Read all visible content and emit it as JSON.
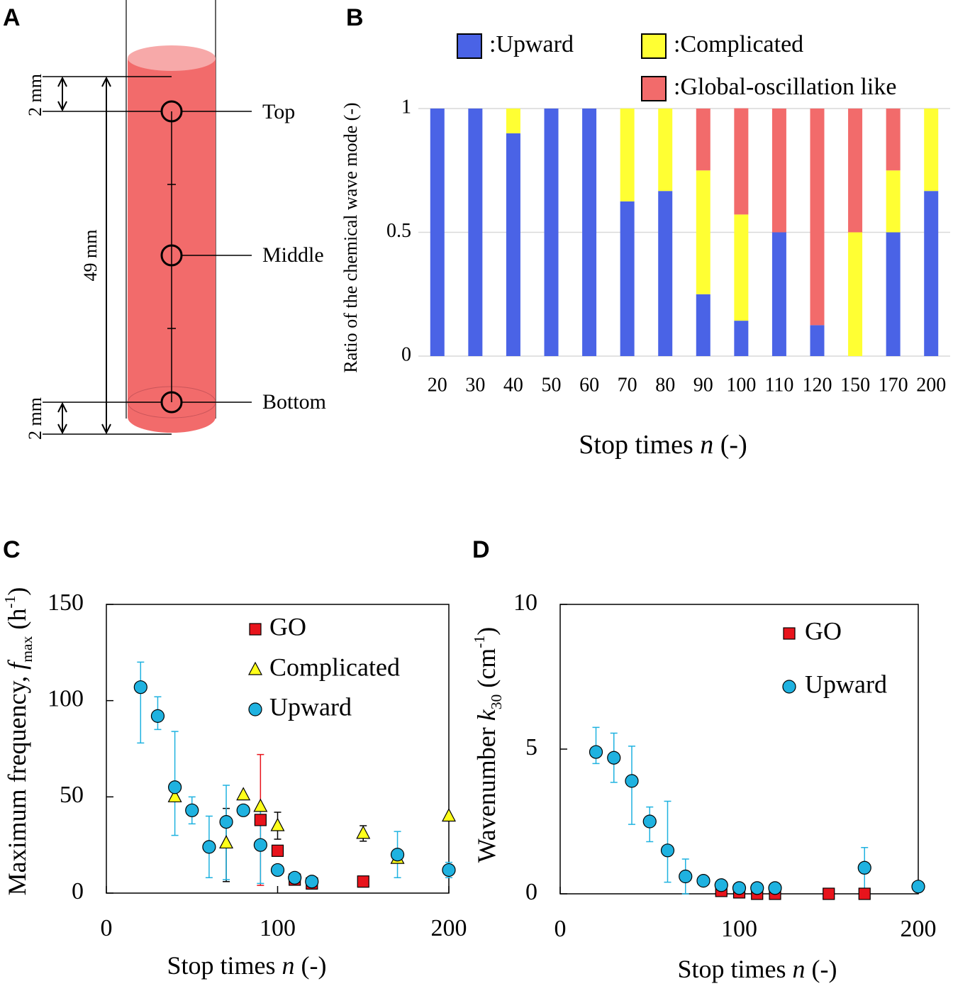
{
  "diagram": {
    "label": "A",
    "dimensions": [
      "2 mm",
      "49 mm",
      "2 mm"
    ],
    "points": [
      "Top",
      "Middle",
      "Bottom"
    ]
  },
  "chart_data": [
    {
      "type": "bar",
      "stacked": true,
      "label": "B",
      "y_label": "Ratio of the chemical wave mode (-)",
      "x_label": [
        "Stop times ",
        "n",
        " (-)"
      ],
      "categories": [
        "20",
        "30",
        "40",
        "50",
        "60",
        "70",
        "80",
        "90",
        "100",
        "110",
        "120",
        "150",
        "170",
        "200"
      ],
      "series": [
        {
          "name": ":Upward",
          "color": "#4a63e6",
          "values": [
            1,
            1,
            0.9,
            1,
            1,
            0.625,
            0.667,
            0.25,
            0.143,
            0.5,
            0.125,
            0,
            0.5,
            0.667
          ]
        },
        {
          "name": ":Complicated",
          "color": "#ffff33",
          "values": [
            0,
            0,
            0.1,
            0,
            0,
            0.375,
            0.333,
            0.5,
            0.429,
            0,
            0,
            0.5,
            0.25,
            0.333
          ]
        },
        {
          "name": ":Global-oscillation like",
          "color": "#f26b6b",
          "values": [
            0,
            0,
            0,
            0,
            0,
            0,
            0,
            0.25,
            0.429,
            0.5,
            0.875,
            0.5,
            0.25,
            0
          ]
        }
      ],
      "ylim": [
        0,
        1
      ],
      "yticks": [
        0,
        0.5,
        1
      ],
      "grid": true
    },
    {
      "type": "scatter",
      "label": "C",
      "y_label": [
        "Maximum frequency, ",
        "f",
        "max",
        " (h",
        "-1",
        ")"
      ],
      "x_label": [
        "Stop times ",
        "n",
        " (-)"
      ],
      "xlim": [
        0,
        200
      ],
      "xticks": [
        0,
        100,
        200
      ],
      "ylim": [
        0,
        150
      ],
      "yticks": [
        0,
        50,
        100,
        150
      ],
      "series": [
        {
          "name": "GO",
          "color": "#e8141c",
          "marker": "square",
          "x": [
            90,
            100,
            110,
            120,
            150
          ],
          "values": [
            38,
            22,
            7,
            5,
            6
          ],
          "err_plus": [
            34,
            null,
            null,
            null,
            null
          ],
          "err_minus": [
            34,
            null,
            null,
            null,
            null
          ]
        },
        {
          "name": "Complicated",
          "color": "#ffff1a",
          "marker": "triangle",
          "x": [
            40,
            70,
            80,
            90,
            100,
            150,
            170,
            200
          ],
          "values": [
            50,
            26,
            51,
            45,
            35,
            31,
            18,
            40
          ],
          "err_plus": [
            null,
            18,
            null,
            null,
            7,
            4,
            null,
            null
          ],
          "err_minus": [
            null,
            20,
            null,
            null,
            7,
            4,
            null,
            null
          ]
        },
        {
          "name": "Upward",
          "color": "#1fb2e0",
          "marker": "circle",
          "x": [
            20,
            30,
            40,
            50,
            60,
            70,
            80,
            90,
            100,
            110,
            120,
            170,
            200
          ],
          "values": [
            107,
            92,
            55,
            43,
            24,
            37,
            43,
            25,
            12,
            8,
            6,
            20,
            12
          ],
          "err_plus": [
            13,
            10,
            29,
            7,
            16,
            19,
            null,
            20,
            null,
            null,
            null,
            12,
            4
          ],
          "err_minus": [
            29,
            7,
            25,
            7,
            16,
            30,
            null,
            20,
            null,
            null,
            null,
            12,
            4
          ]
        }
      ]
    },
    {
      "type": "scatter",
      "label": "D",
      "y_label": [
        "Wavenumber ",
        "k",
        "30",
        " (cm",
        "-1",
        ")"
      ],
      "x_label": [
        "Stop times ",
        "n",
        " (-)"
      ],
      "xlim": [
        0,
        200
      ],
      "xticks": [
        0,
        100,
        200
      ],
      "ylim": [
        0,
        10
      ],
      "yticks": [
        0,
        5,
        10
      ],
      "series": [
        {
          "name": "GO",
          "color": "#e8141c",
          "marker": "square",
          "x": [
            90,
            100,
            110,
            120,
            150,
            170
          ],
          "values": [
            0.1,
            0.05,
            0,
            0,
            0,
            0
          ],
          "err_plus": [
            null,
            null,
            null,
            null,
            null,
            null
          ],
          "err_minus": [
            null,
            null,
            null,
            null,
            null,
            null
          ]
        },
        {
          "name": "Upward",
          "color": "#1fb2e0",
          "marker": "circle",
          "x": [
            20,
            30,
            40,
            50,
            60,
            70,
            80,
            90,
            100,
            110,
            120,
            170,
            200
          ],
          "values": [
            4.9,
            4.7,
            3.9,
            2.5,
            1.5,
            0.6,
            0.45,
            0.3,
            0.2,
            0.2,
            0.2,
            0.9,
            0.25
          ],
          "err_plus": [
            0.85,
            0.85,
            1.2,
            0.5,
            1.7,
            0.6,
            null,
            null,
            null,
            null,
            null,
            0.7,
            null
          ],
          "err_minus": [
            0.4,
            0.85,
            1.5,
            0.7,
            1.1,
            0.6,
            null,
            null,
            null,
            null,
            null,
            0.9,
            null
          ]
        }
      ]
    }
  ]
}
